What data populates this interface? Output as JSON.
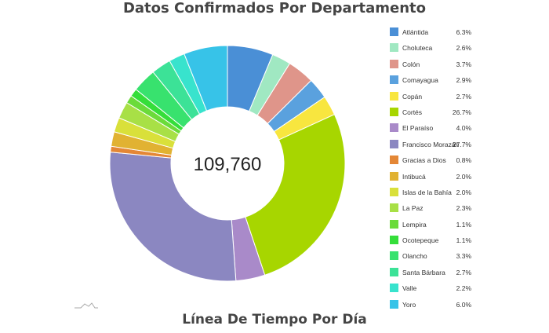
{
  "title": "Datos Confirmados Por Departamento",
  "next_section_title": "Línea De Tiempo Por Día",
  "icons": {
    "mini_chart": "sparkline-icon"
  },
  "chart_data": {
    "type": "pie",
    "variant": "donut",
    "title": "Datos Confirmados Por Departamento",
    "center_label": "109,760",
    "total": 109760,
    "legend_position": "right",
    "categories": [
      "Atlántida",
      "Choluteca",
      "Colón",
      "Comayagua",
      "Copán",
      "Cortés",
      "El Paraíso",
      "Francisco Morazán",
      "Gracias a Dios",
      "Intibucá",
      "Islas de la Bahía",
      "La Paz",
      "Lempira",
      "Ocotepeque",
      "Olancho",
      "Santa Bárbara",
      "Valle",
      "Yoro"
    ],
    "values": [
      6.3,
      2.6,
      3.7,
      2.9,
      2.7,
      26.7,
      4.0,
      27.7,
      0.8,
      2.0,
      2.0,
      2.3,
      1.1,
      1.1,
      3.3,
      2.7,
      2.2,
      6.0
    ],
    "value_labels": [
      "6.3%",
      "2.6%",
      "3.7%",
      "2.9%",
      "2.7%",
      "26.7%",
      "4.0%",
      "27.7%",
      "0.8%",
      "2.0%",
      "2.0%",
      "2.3%",
      "1.1%",
      "1.1%",
      "3.3%",
      "2.7%",
      "2.2%",
      "6.0%"
    ],
    "colors": [
      "#4a8fd6",
      "#a0e8c2",
      "#df958a",
      "#5aa1de",
      "#f8e63f",
      "#a7d600",
      "#a98ac9",
      "#8b87c1",
      "#e48736",
      "#e1b232",
      "#d9e03a",
      "#a8e046",
      "#6bdb3a",
      "#35de3a",
      "#38e26e",
      "#3ce297",
      "#38e3cd",
      "#37c3e8"
    ]
  }
}
